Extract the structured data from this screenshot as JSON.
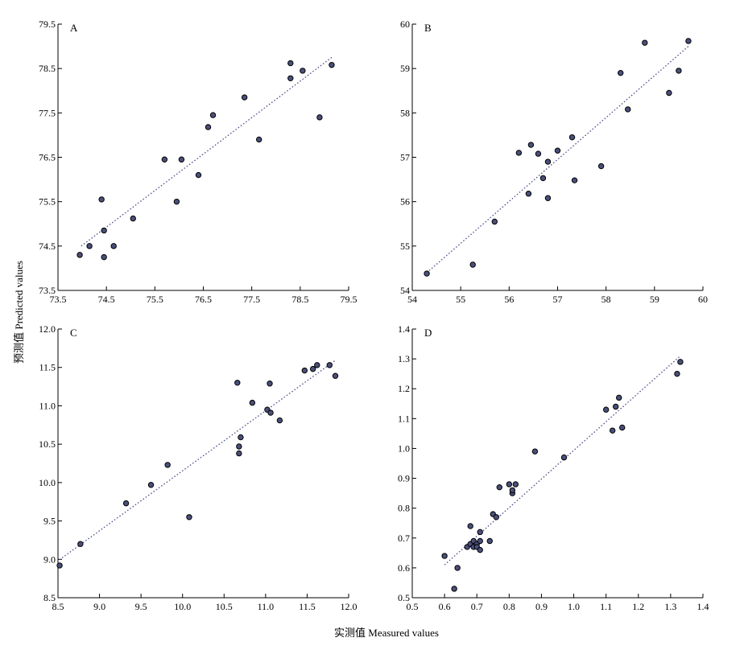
{
  "figure": {
    "ylabel": "预测值 Predicted values",
    "xlabel": "实测值 Measured values"
  },
  "chart_data": [
    {
      "type": "scatter",
      "panel_label": "A",
      "title": "",
      "xlim": [
        73.5,
        79.5
      ],
      "ylim": [
        73.5,
        79.5
      ],
      "xticks": [
        "73.5",
        "74.5",
        "75.5",
        "76.5",
        "77.5",
        "78.5",
        "79.5"
      ],
      "yticks": [
        "73.5",
        "74.5",
        "75.5",
        "76.5",
        "77.5",
        "78.5",
        "79.5"
      ],
      "trendline": [
        [
          73.98,
          74.5
        ],
        [
          79.15,
          78.75
        ]
      ],
      "points": [
        [
          73.95,
          74.3
        ],
        [
          74.15,
          74.5
        ],
        [
          74.4,
          75.55
        ],
        [
          74.45,
          74.85
        ],
        [
          74.45,
          74.25
        ],
        [
          74.65,
          74.5
        ],
        [
          75.05,
          75.12
        ],
        [
          75.7,
          76.45
        ],
        [
          76.05,
          76.45
        ],
        [
          75.95,
          75.5
        ],
        [
          76.4,
          76.1
        ],
        [
          76.6,
          77.18
        ],
        [
          76.7,
          77.45
        ],
        [
          77.35,
          77.85
        ],
        [
          77.65,
          76.9
        ],
        [
          78.3,
          78.28
        ],
        [
          78.3,
          78.62
        ],
        [
          78.55,
          78.45
        ],
        [
          78.9,
          77.4
        ],
        [
          79.15,
          78.58
        ]
      ],
      "grid": false
    },
    {
      "type": "scatter",
      "panel_label": "B",
      "title": "",
      "xlim": [
        54,
        60
      ],
      "ylim": [
        54,
        60
      ],
      "xticks": [
        "54",
        "55",
        "56",
        "57",
        "58",
        "59",
        "60"
      ],
      "yticks": [
        "54",
        "55",
        "56",
        "57",
        "58",
        "59",
        "60"
      ],
      "trendline": [
        [
          54.3,
          54.4
        ],
        [
          59.7,
          59.5
        ]
      ],
      "points": [
        [
          54.3,
          54.38
        ],
        [
          55.25,
          54.58
        ],
        [
          55.7,
          55.55
        ],
        [
          56.2,
          57.1
        ],
        [
          56.4,
          56.18
        ],
        [
          56.45,
          57.28
        ],
        [
          56.6,
          57.08
        ],
        [
          56.7,
          56.53
        ],
        [
          56.8,
          56.9
        ],
        [
          56.8,
          56.08
        ],
        [
          57.0,
          57.15
        ],
        [
          57.3,
          57.45
        ],
        [
          57.35,
          56.48
        ],
        [
          57.9,
          56.8
        ],
        [
          58.3,
          58.9
        ],
        [
          58.45,
          58.08
        ],
        [
          58.8,
          59.58
        ],
        [
          59.3,
          58.45
        ],
        [
          59.5,
          58.95
        ],
        [
          59.7,
          59.62
        ]
      ],
      "grid": false
    },
    {
      "type": "scatter",
      "panel_label": "C",
      "title": "",
      "xlim": [
        8.5,
        12.0
      ],
      "ylim": [
        8.5,
        12.0
      ],
      "xticks": [
        "8.5",
        "9.0",
        "9.5",
        "10.0",
        "10.5",
        "11.0",
        "11.5",
        "12.0"
      ],
      "yticks": [
        "8.5",
        "9.0",
        "9.5",
        "10.0",
        "10.5",
        "11.0",
        "11.5",
        "12.0"
      ],
      "trendline": [
        [
          8.55,
          9.02
        ],
        [
          11.85,
          11.6
        ]
      ],
      "points": [
        [
          8.52,
          8.92
        ],
        [
          8.77,
          9.2
        ],
        [
          9.32,
          9.73
        ],
        [
          9.62,
          9.97
        ],
        [
          9.82,
          10.23
        ],
        [
          10.08,
          9.55
        ],
        [
          10.66,
          11.3
        ],
        [
          10.68,
          10.38
        ],
        [
          10.68,
          10.47
        ],
        [
          10.7,
          10.59
        ],
        [
          10.84,
          11.04
        ],
        [
          11.02,
          10.95
        ],
        [
          11.05,
          11.29
        ],
        [
          11.06,
          10.91
        ],
        [
          11.17,
          10.81
        ],
        [
          11.47,
          11.46
        ],
        [
          11.57,
          11.48
        ],
        [
          11.62,
          11.53
        ],
        [
          11.77,
          11.53
        ],
        [
          11.84,
          11.39
        ]
      ],
      "grid": false
    },
    {
      "type": "scatter",
      "panel_label": "D",
      "title": "",
      "xlim": [
        0.5,
        1.4
      ],
      "ylim": [
        0.5,
        1.4
      ],
      "xticks": [
        "0.5",
        "0.6",
        "0.7",
        "0.8",
        "0.9",
        "1.0",
        "1.1",
        "1.2",
        "1.3",
        "1.4"
      ],
      "yticks": [
        "0.5",
        "0.6",
        "0.7",
        "0.8",
        "0.9",
        "1.0",
        "1.1",
        "1.2",
        "1.3",
        "1.4"
      ],
      "trendline": [
        [
          0.6,
          0.61
        ],
        [
          1.33,
          1.31
        ]
      ],
      "points": [
        [
          0.6,
          0.64
        ],
        [
          0.63,
          0.53
        ],
        [
          0.64,
          0.6
        ],
        [
          0.67,
          0.67
        ],
        [
          0.68,
          0.74
        ],
        [
          0.68,
          0.68
        ],
        [
          0.69,
          0.67
        ],
        [
          0.69,
          0.69
        ],
        [
          0.7,
          0.68
        ],
        [
          0.7,
          0.67
        ],
        [
          0.71,
          0.66
        ],
        [
          0.71,
          0.69
        ],
        [
          0.71,
          0.72
        ],
        [
          0.74,
          0.69
        ],
        [
          0.75,
          0.78
        ],
        [
          0.76,
          0.77
        ],
        [
          0.77,
          0.87
        ],
        [
          0.8,
          0.88
        ],
        [
          0.81,
          0.85
        ],
        [
          0.81,
          0.86
        ],
        [
          0.82,
          0.88
        ],
        [
          0.88,
          0.99
        ],
        [
          0.97,
          0.97
        ],
        [
          1.1,
          1.13
        ],
        [
          1.12,
          1.06
        ],
        [
          1.13,
          1.14
        ],
        [
          1.14,
          1.17
        ],
        [
          1.15,
          1.07
        ],
        [
          1.32,
          1.25
        ],
        [
          1.33,
          1.29
        ]
      ],
      "grid": false
    }
  ]
}
